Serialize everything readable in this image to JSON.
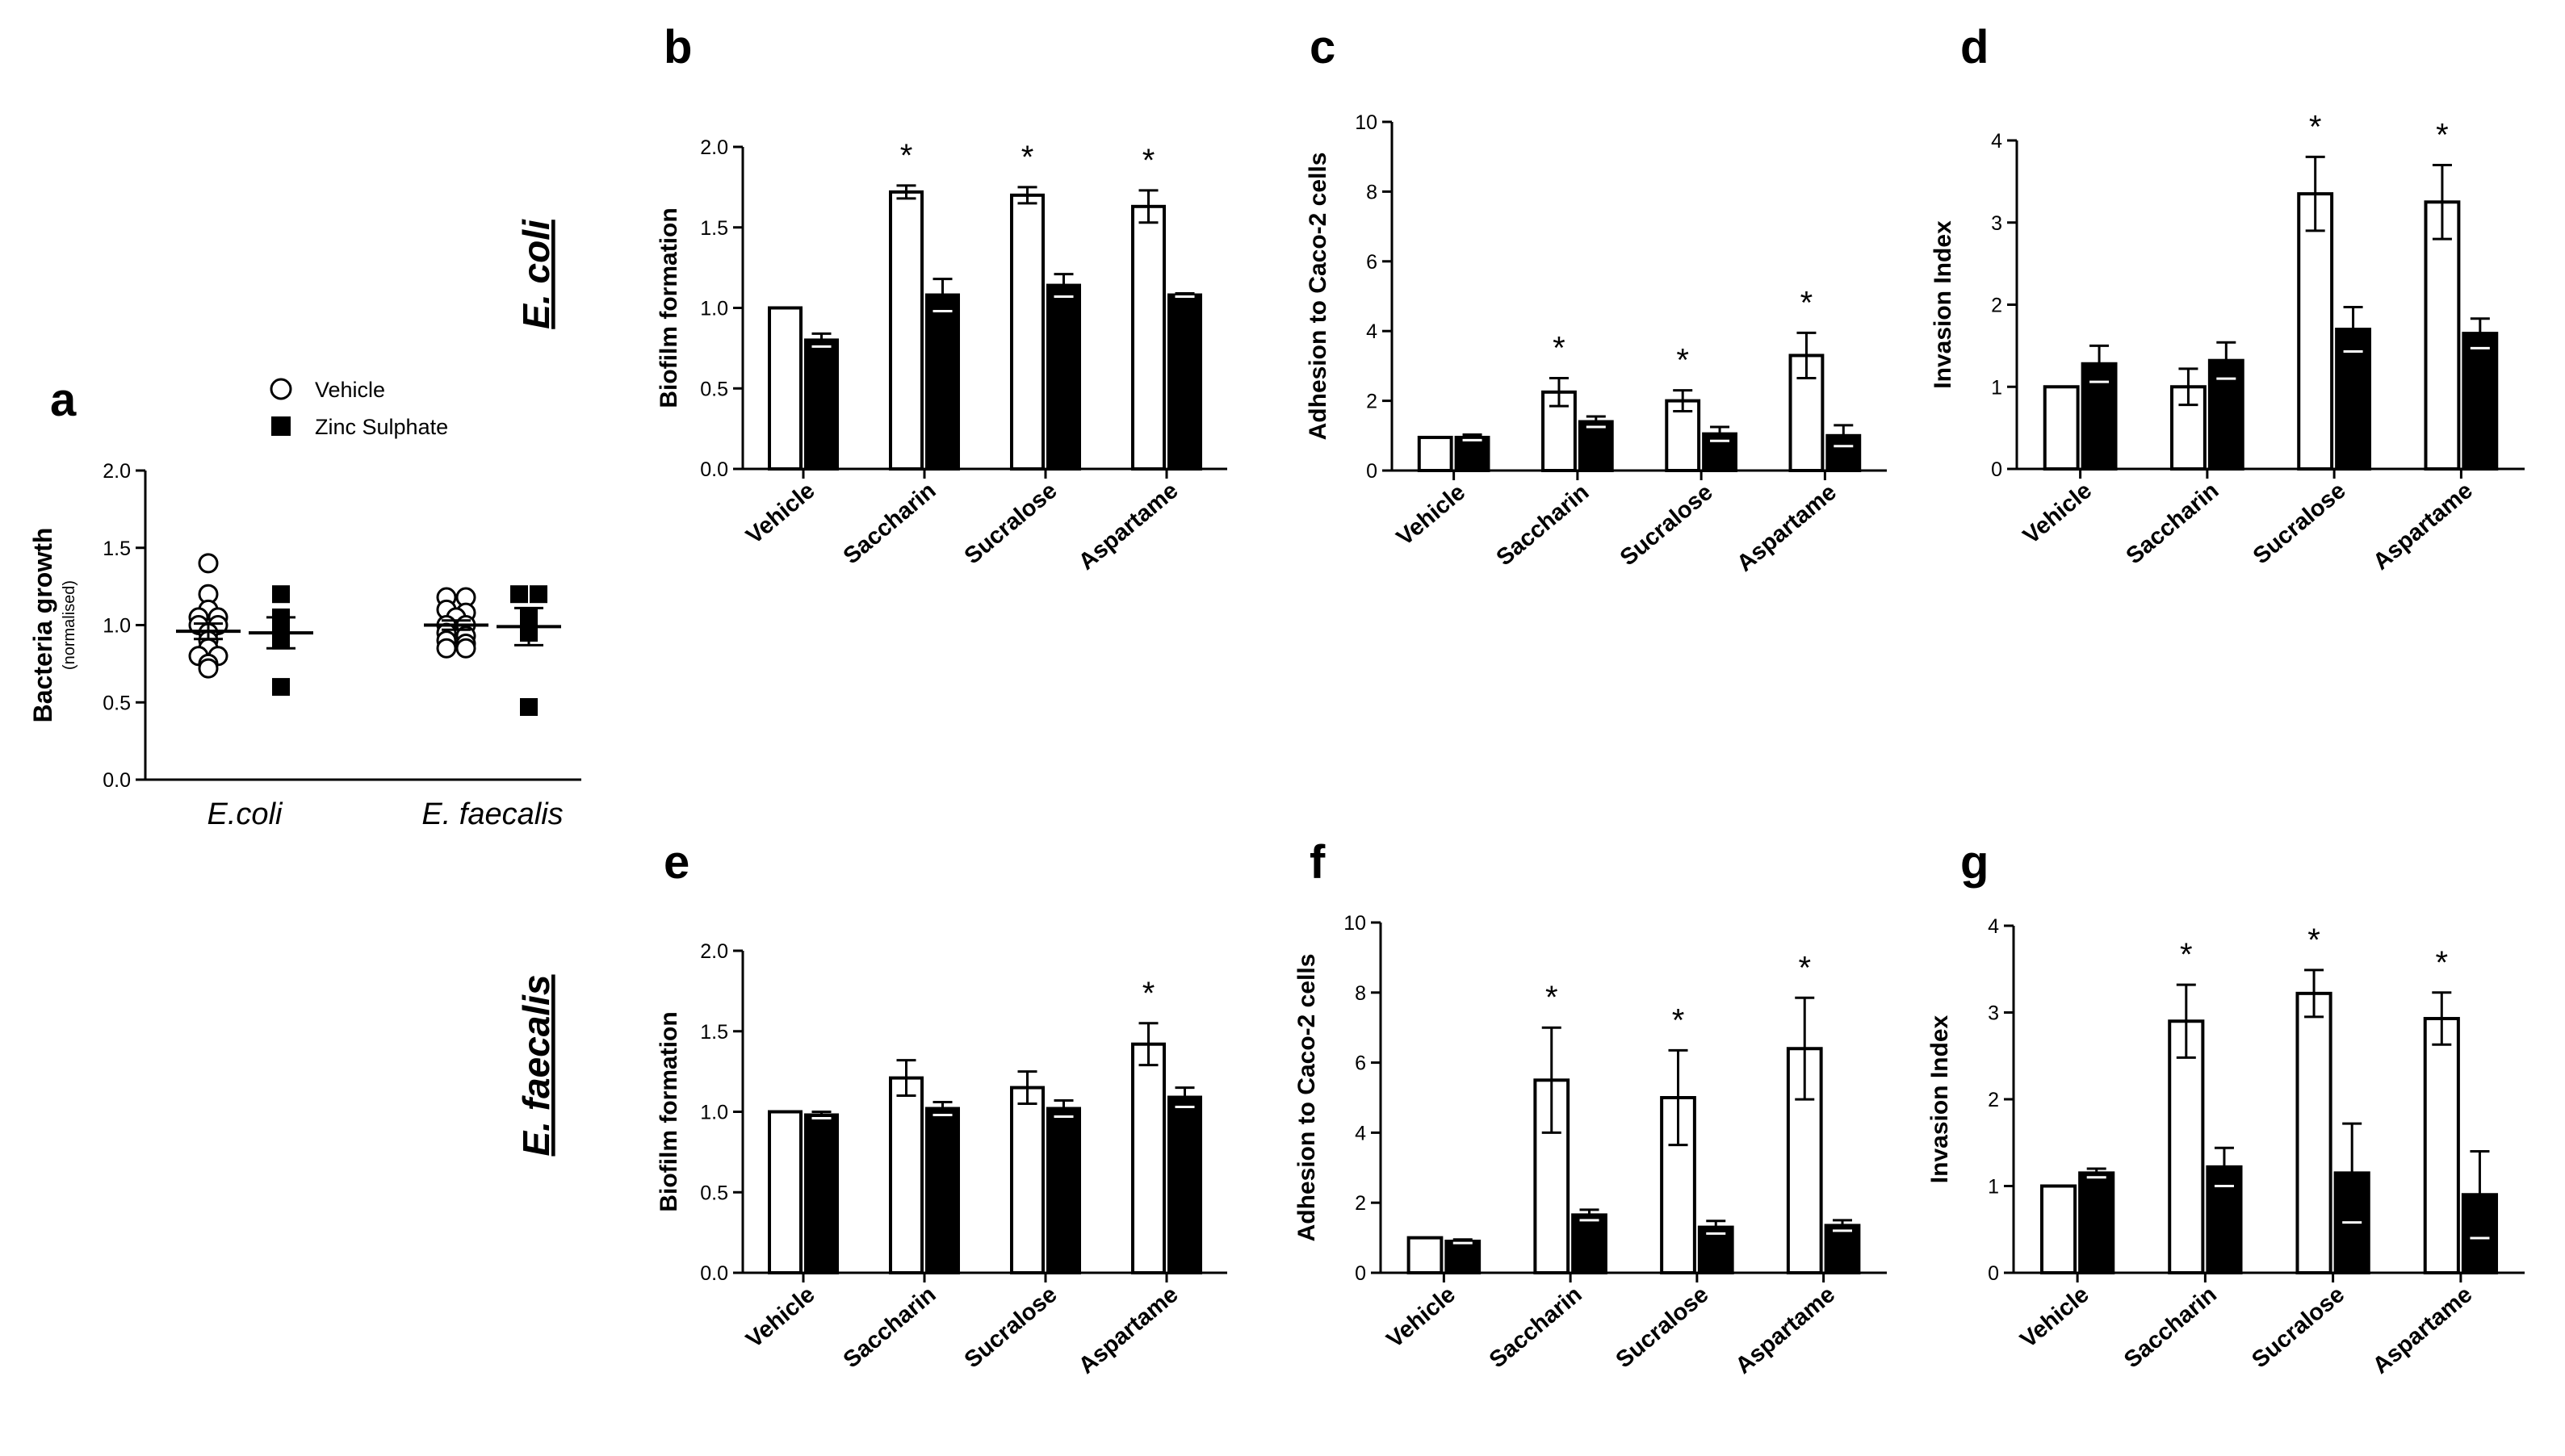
{
  "figure": {
    "row_labels": {
      "top": "E. coli",
      "bottom": "E. faecalis"
    }
  },
  "chart_data": [
    {
      "id": "a",
      "panel_label": "a",
      "type": "scatter",
      "ylabel": "Bacteria growth",
      "ylabel_sub": "(normalised)",
      "ylim": [
        0,
        2.0
      ],
      "yticks": [
        "0.0",
        "0.5",
        "1.0",
        "1.5",
        "2.0"
      ],
      "categories": [
        "E.coli",
        "E. faecalis"
      ],
      "legend": [
        {
          "name": "Vehicle",
          "marker": "open-circle"
        },
        {
          "name": "Zinc Sulphate",
          "marker": "filled-square"
        }
      ],
      "series": [
        {
          "name": "Vehicle",
          "groups": [
            {
              "category": "E.coli",
              "values": [
                1.4,
                1.2,
                1.1,
                1.05,
                1.05,
                1.0,
                1.0,
                0.95,
                0.9,
                0.85,
                0.8,
                0.8,
                0.75,
                0.72
              ],
              "mean": 0.96,
              "sem": 0.05
            },
            {
              "category": "E. faecalis",
              "values": [
                1.18,
                1.18,
                1.1,
                1.08,
                1.05,
                1.0,
                1.0,
                0.95,
                0.93,
                0.9,
                0.88,
                0.85,
                0.85
              ],
              "mean": 1.0,
              "sem": 0.03
            }
          ]
        },
        {
          "name": "Zinc Sulphate",
          "groups": [
            {
              "category": "E.coli",
              "values": [
                1.2,
                1.05,
                0.95,
                0.9,
                0.6
              ],
              "mean": 0.95,
              "sem": 0.1
            },
            {
              "category": "E. faecalis",
              "values": [
                1.2,
                1.2,
                1.05,
                1.0,
                0.95,
                0.47
              ],
              "mean": 0.99,
              "sem": 0.12
            }
          ]
        }
      ]
    },
    {
      "id": "b",
      "panel_label": "b",
      "type": "bar",
      "ylabel": "Biofilm formation",
      "ylim": [
        0,
        2.0
      ],
      "yticks": [
        "0.0",
        "0.5",
        "1.0",
        "1.5",
        "2.0"
      ],
      "categories": [
        "Vehicle",
        "Saccharin",
        "Sucralose",
        "Aspartame"
      ],
      "series": [
        {
          "name": "Vehicle",
          "values": [
            1.0,
            1.72,
            1.7,
            1.63
          ],
          "errors": [
            0,
            0.04,
            0.05,
            0.1
          ]
        },
        {
          "name": "Zinc Sulphate",
          "values": [
            0.8,
            1.08,
            1.14,
            1.08
          ],
          "errors": [
            0.04,
            0.1,
            0.07,
            0.01
          ]
        }
      ],
      "significance": [
        "",
        "*",
        "*",
        "*"
      ]
    },
    {
      "id": "c",
      "panel_label": "c",
      "type": "bar",
      "ylabel": "Adhesion to Caco-2 cells",
      "ylim": [
        0,
        10
      ],
      "yticks": [
        "0",
        "2",
        "4",
        "6",
        "8",
        "10"
      ],
      "categories": [
        "Vehicle",
        "Saccharin",
        "Sucralose",
        "Aspartame"
      ],
      "series": [
        {
          "name": "Vehicle",
          "values": [
            0.95,
            2.25,
            2.0,
            3.3
          ],
          "errors": [
            0,
            0.4,
            0.3,
            0.65
          ]
        },
        {
          "name": "Zinc Sulphate",
          "values": [
            0.95,
            1.4,
            1.05,
            1.0
          ],
          "errors": [
            0.08,
            0.15,
            0.2,
            0.3
          ]
        }
      ],
      "significance": [
        "",
        "*",
        "*",
        "*"
      ]
    },
    {
      "id": "d",
      "panel_label": "d",
      "type": "bar",
      "ylabel": "Invasion Index",
      "ylim": [
        0,
        4
      ],
      "yticks": [
        "0",
        "1",
        "2",
        "3",
        "4"
      ],
      "categories": [
        "Vehicle",
        "Saccharin",
        "Sucralose",
        "Aspartame"
      ],
      "series": [
        {
          "name": "Vehicle",
          "values": [
            1.0,
            1.0,
            3.35,
            3.25
          ],
          "errors": [
            0,
            0.22,
            0.45,
            0.45
          ]
        },
        {
          "name": "Zinc Sulphate",
          "values": [
            1.28,
            1.32,
            1.7,
            1.65
          ],
          "errors": [
            0.22,
            0.22,
            0.27,
            0.18
          ]
        }
      ],
      "significance": [
        "",
        "",
        "*",
        "*"
      ]
    },
    {
      "id": "e",
      "panel_label": "e",
      "type": "bar",
      "ylabel": "Biofilm formation",
      "ylim": [
        0,
        2.0
      ],
      "yticks": [
        "0.0",
        "0.5",
        "1.0",
        "1.5",
        "2.0"
      ],
      "categories": [
        "Vehicle",
        "Saccharin",
        "Sucralose",
        "Aspartame"
      ],
      "series": [
        {
          "name": "Vehicle",
          "values": [
            1.0,
            1.21,
            1.15,
            1.42
          ],
          "errors": [
            0,
            0.11,
            0.1,
            0.13
          ]
        },
        {
          "name": "Zinc Sulphate",
          "values": [
            0.98,
            1.02,
            1.02,
            1.09
          ],
          "errors": [
            0.02,
            0.04,
            0.05,
            0.06
          ]
        }
      ],
      "significance": [
        "",
        "",
        "",
        "*"
      ]
    },
    {
      "id": "f",
      "panel_label": "f",
      "type": "bar",
      "ylabel": "Adhesion to Caco-2 cells",
      "ylim": [
        0,
        10
      ],
      "yticks": [
        "0",
        "2",
        "4",
        "6",
        "8",
        "10"
      ],
      "categories": [
        "Vehicle",
        "Saccharin",
        "Sucralose",
        "Aspartame"
      ],
      "series": [
        {
          "name": "Vehicle",
          "values": [
            1.0,
            5.5,
            5.0,
            6.4
          ],
          "errors": [
            0,
            1.5,
            1.35,
            1.45
          ]
        },
        {
          "name": "Zinc Sulphate",
          "values": [
            0.9,
            1.65,
            1.3,
            1.35
          ],
          "errors": [
            0.05,
            0.15,
            0.18,
            0.15
          ]
        }
      ],
      "significance": [
        "",
        "*",
        "*",
        "*"
      ]
    },
    {
      "id": "g",
      "panel_label": "g",
      "type": "bar",
      "ylabel": "Invasion Index",
      "ylim": [
        0,
        4
      ],
      "yticks": [
        "0",
        "1",
        "2",
        "3",
        "4"
      ],
      "categories": [
        "Vehicle",
        "Saccharin",
        "Sucralose",
        "Aspartame"
      ],
      "series": [
        {
          "name": "Vehicle",
          "values": [
            1.0,
            2.9,
            3.22,
            2.93
          ],
          "errors": [
            0,
            0.42,
            0.27,
            0.3
          ]
        },
        {
          "name": "Zinc Sulphate",
          "values": [
            1.15,
            1.22,
            1.15,
            0.9
          ],
          "errors": [
            0.05,
            0.22,
            0.57,
            0.5
          ]
        }
      ],
      "significance": [
        "",
        "*",
        "*",
        "*"
      ]
    }
  ]
}
